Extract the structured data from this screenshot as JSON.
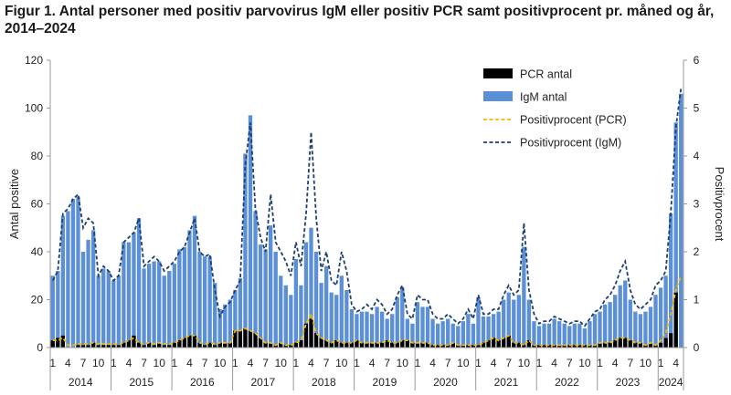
{
  "title": "Figur 1. Antal personer med positiv parvovirus IgM eller positiv PCR samt positivprocent pr. måned og år, 2014–2024",
  "chart_data": {
    "type": "bar",
    "ylabel": "Antal positive",
    "y2label": "Positivprocent",
    "ylim": [
      0,
      120
    ],
    "y2lim": [
      0,
      6
    ],
    "yticks": [
      0,
      20,
      40,
      60,
      80,
      100,
      120
    ],
    "y2ticks": [
      0,
      1,
      2,
      3,
      4,
      5,
      6
    ],
    "grid": false,
    "legend_position": "top-right",
    "month_ticks": [
      "1",
      "4",
      "7",
      "10"
    ],
    "years": [
      "2014",
      "2015",
      "2016",
      "2017",
      "2018",
      "2019",
      "2020",
      "2021",
      "2022",
      "2023",
      "2024"
    ],
    "colors": {
      "pcr": "#000000",
      "igm": "#5b8fd6",
      "pct_pcr": "#f2b800",
      "pct_igm": "#1f3f6e"
    },
    "series": [
      {
        "name": "PCR antal",
        "kind": "bar",
        "values": [
          3,
          4,
          5,
          0,
          0,
          1,
          1,
          1,
          2,
          1,
          1,
          1,
          1,
          1,
          2,
          3,
          5,
          2,
          1,
          2,
          1,
          2,
          1,
          1,
          2,
          3,
          4,
          5,
          5,
          2,
          1,
          2,
          1,
          2,
          2,
          2,
          7,
          7,
          8,
          7,
          6,
          4,
          2,
          2,
          1,
          2,
          1,
          1,
          2,
          3,
          10,
          12,
          6,
          4,
          3,
          2,
          3,
          2,
          2,
          2,
          3,
          2,
          2,
          2,
          2,
          2,
          3,
          2,
          2,
          3,
          3,
          2,
          2,
          2,
          2,
          1,
          1,
          1,
          1,
          2,
          1,
          1,
          1,
          1,
          1,
          2,
          3,
          4,
          3,
          4,
          5,
          2,
          2,
          1,
          3,
          1,
          1,
          1,
          1,
          1,
          1,
          1,
          1,
          1,
          1,
          1,
          1,
          1,
          2,
          2,
          2,
          3,
          4,
          4,
          3,
          2,
          2,
          1,
          2,
          1,
          2,
          4,
          6,
          23
        ]
      },
      {
        "name": "IgM antal",
        "kind": "bar",
        "values": [
          30,
          32,
          55,
          57,
          62,
          63,
          40,
          45,
          49,
          30,
          33,
          32,
          28,
          30,
          44,
          44,
          48,
          54,
          33,
          35,
          36,
          36,
          30,
          32,
          35,
          41,
          42,
          49,
          55,
          40,
          38,
          38,
          27,
          16,
          18,
          20,
          24,
          29,
          81,
          97,
          57,
          43,
          41,
          51,
          40,
          30,
          26,
          22,
          37,
          26,
          44,
          50,
          40,
          27,
          34,
          23,
          22,
          30,
          24,
          16,
          14,
          15,
          15,
          14,
          17,
          15,
          12,
          14,
          21,
          25,
          12,
          10,
          19,
          17,
          17,
          12,
          10,
          11,
          12,
          10,
          9,
          11,
          14,
          10,
          21,
          13,
          13,
          14,
          15,
          20,
          23,
          20,
          22,
          42,
          20,
          11,
          9,
          10,
          10,
          12,
          11,
          10,
          9,
          10,
          10,
          8,
          11,
          14,
          15,
          18,
          19,
          22,
          26,
          28,
          20,
          15,
          14,
          15,
          17,
          22,
          25,
          30,
          56,
          94,
          106
        ]
      },
      {
        "name": "Positivprocent (PCR)",
        "kind": "line",
        "axis": "right",
        "values": [
          0.15,
          0.15,
          0.2,
          0.05,
          0.05,
          0.08,
          0.08,
          0.08,
          0.1,
          0.08,
          0.08,
          0.08,
          0.08,
          0.08,
          0.1,
          0.15,
          0.2,
          0.1,
          0.08,
          0.1,
          0.08,
          0.1,
          0.08,
          0.08,
          0.1,
          0.15,
          0.2,
          0.25,
          0.25,
          0.1,
          0.08,
          0.1,
          0.08,
          0.1,
          0.1,
          0.1,
          0.35,
          0.35,
          0.4,
          0.35,
          0.3,
          0.2,
          0.1,
          0.1,
          0.05,
          0.1,
          0.05,
          0.05,
          0.1,
          0.15,
          0.5,
          0.7,
          0.3,
          0.2,
          0.15,
          0.1,
          0.15,
          0.1,
          0.1,
          0.1,
          0.15,
          0.1,
          0.1,
          0.1,
          0.1,
          0.1,
          0.15,
          0.1,
          0.1,
          0.15,
          0.15,
          0.1,
          0.1,
          0.1,
          0.1,
          0.05,
          0.05,
          0.05,
          0.05,
          0.1,
          0.05,
          0.05,
          0.05,
          0.05,
          0.05,
          0.1,
          0.15,
          0.2,
          0.15,
          0.2,
          0.25,
          0.1,
          0.1,
          0.05,
          0.15,
          0.05,
          0.05,
          0.05,
          0.05,
          0.05,
          0.05,
          0.05,
          0.05,
          0.05,
          0.05,
          0.05,
          0.05,
          0.05,
          0.1,
          0.1,
          0.1,
          0.15,
          0.2,
          0.2,
          0.15,
          0.1,
          0.1,
          0.05,
          0.1,
          0.05,
          0.15,
          0.3,
          0.7,
          1.2,
          1.5
        ]
      },
      {
        "name": "Positivprocent (IgM)",
        "kind": "line",
        "axis": "right",
        "values": [
          1.4,
          1.6,
          2.8,
          2.9,
          3.1,
          3.2,
          2.5,
          2.7,
          2.6,
          1.5,
          1.7,
          1.6,
          1.4,
          1.5,
          2.2,
          2.3,
          2.4,
          2.7,
          1.7,
          1.8,
          1.9,
          1.8,
          1.6,
          1.7,
          1.8,
          2.0,
          2.1,
          2.4,
          2.7,
          2.0,
          1.9,
          1.95,
          1.2,
          0.65,
          0.85,
          0.95,
          1.2,
          1.4,
          3.8,
          4.7,
          2.9,
          2.3,
          2.0,
          3.2,
          2.2,
          2.0,
          1.8,
          1.5,
          2.2,
          1.7,
          2.8,
          4.5,
          2.7,
          1.6,
          2.0,
          1.4,
          1.3,
          2.0,
          1.6,
          0.9,
          0.75,
          0.8,
          0.9,
          0.8,
          1.0,
          0.9,
          0.7,
          0.8,
          1.1,
          1.3,
          0.7,
          0.6,
          1.1,
          1.0,
          1.0,
          0.7,
          0.6,
          0.6,
          0.7,
          0.6,
          0.5,
          0.6,
          0.8,
          0.6,
          1.1,
          0.7,
          0.7,
          0.8,
          0.8,
          1.1,
          1.3,
          1.1,
          1.2,
          2.6,
          1.2,
          0.7,
          0.5,
          0.55,
          0.55,
          0.65,
          0.6,
          0.55,
          0.5,
          0.55,
          0.55,
          0.45,
          0.6,
          0.75,
          0.8,
          1.0,
          1.1,
          1.3,
          1.6,
          1.8,
          1.2,
          0.9,
          0.8,
          0.9,
          1.0,
          1.3,
          1.4,
          1.6,
          2.8,
          4.6,
          5.4
        ]
      }
    ]
  }
}
